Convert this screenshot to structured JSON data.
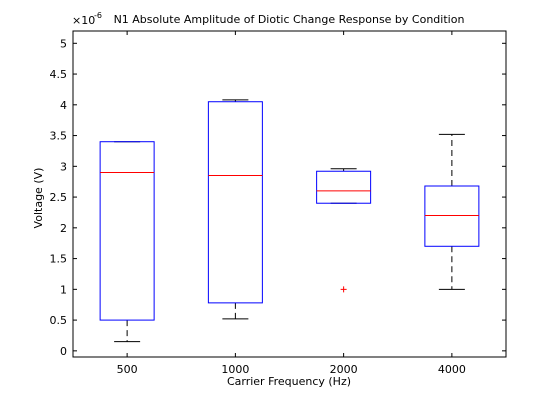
{
  "chart_data": {
    "type": "box",
    "title": "N1 Absolute Amplitude of Diotic Change Response by Condition",
    "xlabel": "Carrier Frequency (Hz)",
    "ylabel": "Voltage (V)",
    "y_multiplier": "×10",
    "y_exponent": "-6",
    "categories": [
      "500",
      "1000",
      "2000",
      "4000"
    ],
    "ylim": [
      -0.1,
      5.2
    ],
    "yticks": [
      0,
      0.5,
      1,
      1.5,
      2,
      2.5,
      3,
      3.5,
      4,
      4.5,
      5
    ],
    "ytick_labels": [
      "0",
      "0.5",
      "1",
      "1.5",
      "2",
      "2.5",
      "3",
      "3.5",
      "4",
      "4.5",
      "5"
    ],
    "grid": false,
    "boxes": [
      {
        "category": "500",
        "lower_whisker": 0.15,
        "q1": 0.5,
        "median": 2.9,
        "q3": 3.4,
        "upper_whisker": 3.4,
        "outliers": []
      },
      {
        "category": "1000",
        "lower_whisker": 0.52,
        "q1": 0.78,
        "median": 2.85,
        "q3": 4.05,
        "upper_whisker": 4.08,
        "outliers": []
      },
      {
        "category": "2000",
        "lower_whisker": 2.4,
        "q1": 2.4,
        "median": 2.6,
        "q3": 2.92,
        "upper_whisker": 2.96,
        "outliers": [
          1.0
        ]
      },
      {
        "category": "4000",
        "lower_whisker": 1.0,
        "q1": 1.7,
        "median": 2.2,
        "q3": 2.68,
        "upper_whisker": 3.52,
        "outliers": []
      }
    ],
    "colors": {
      "box": "#0000ff",
      "median": "#ff0000",
      "whisker": "#000000",
      "outlier": "#ff0000"
    }
  }
}
